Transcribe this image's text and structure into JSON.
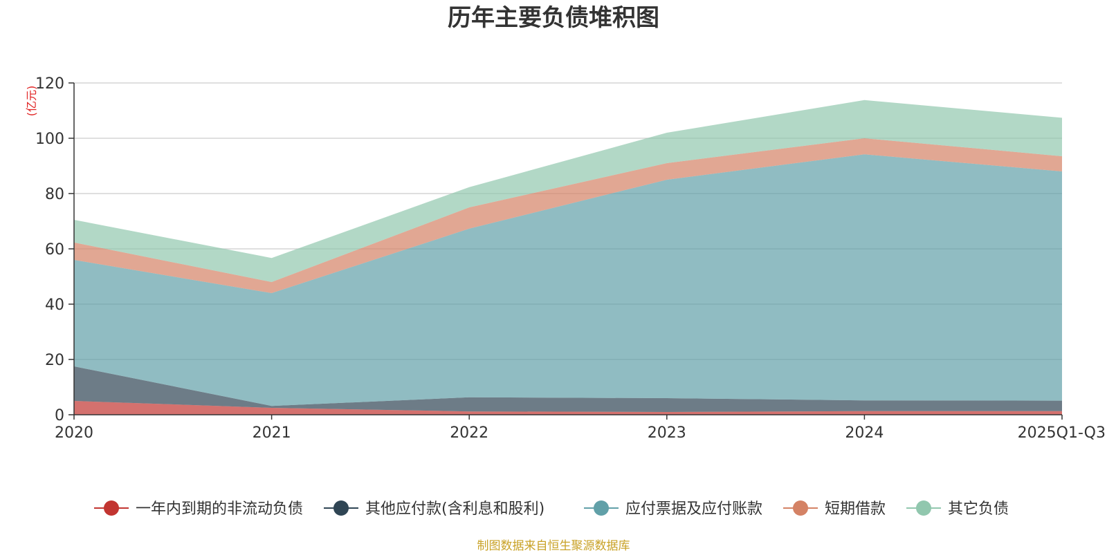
{
  "chart_data": {
    "type": "area",
    "stacked": true,
    "title": "历年主要负债堆积图",
    "ylabel": "(亿元)",
    "xlabel": "",
    "categories": [
      "2020",
      "2021",
      "2022",
      "2023",
      "2024",
      "2025Q1-Q3"
    ],
    "ylim": [
      0,
      120
    ],
    "yticks": [
      0,
      20,
      40,
      60,
      80,
      100,
      120
    ],
    "grid": true,
    "legend_position": "bottom",
    "series": [
      {
        "name": "一年内到期的非流动负债",
        "color": "#c23531",
        "values": [
          5.0,
          2.5,
          1.2,
          1.0,
          1.3,
          1.3
        ]
      },
      {
        "name": "其他应付款(含利息和股利)",
        "color": "#2f4554",
        "values": [
          12.5,
          0.7,
          5.1,
          5.0,
          3.9,
          3.8
        ]
      },
      {
        "name": "应付票据及应付账款",
        "color": "#61a0a8",
        "values": [
          38.5,
          40.8,
          61.0,
          79.0,
          89.0,
          82.9
        ]
      },
      {
        "name": "短期借款",
        "color": "#d48265",
        "values": [
          6.3,
          4.0,
          7.7,
          6.0,
          5.8,
          5.5
        ]
      },
      {
        "name": "其它负债",
        "color": "#91c7ae",
        "values": [
          8.2,
          8.7,
          7.3,
          11.0,
          13.8,
          13.9
        ]
      }
    ]
  },
  "footer": {
    "source": "制图数据来自恒生聚源数据库"
  }
}
